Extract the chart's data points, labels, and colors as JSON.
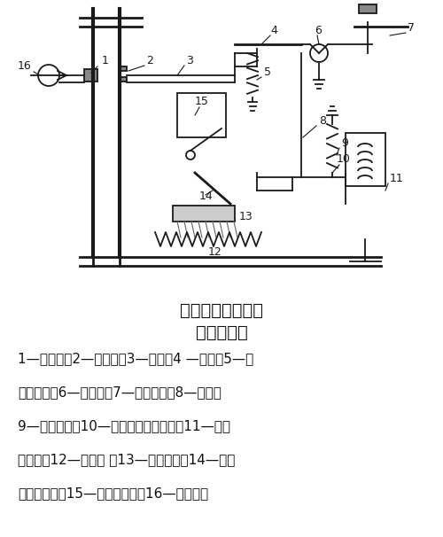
{
  "title1": "低压断路器的工作",
  "title2": "原理示意图",
  "legend_text": "1—动触头；2—静触头；3—锁扣；4 —搭钩；5—反\n作用弹簧；6—转轴座；7—分断按钮；8—杆杆；\n9—拉力弹簧；10—欠电压脱扣器衔铁；11—欠压\n脱扣器；12—热元件 ；13—双金属片；14—电磁\n脱扣器衔铁；15—电磁脱扣器；16—接通按钮",
  "bg_color": "#f5f5f0",
  "line_color": "#1a1a1a",
  "text_color": "#111111"
}
